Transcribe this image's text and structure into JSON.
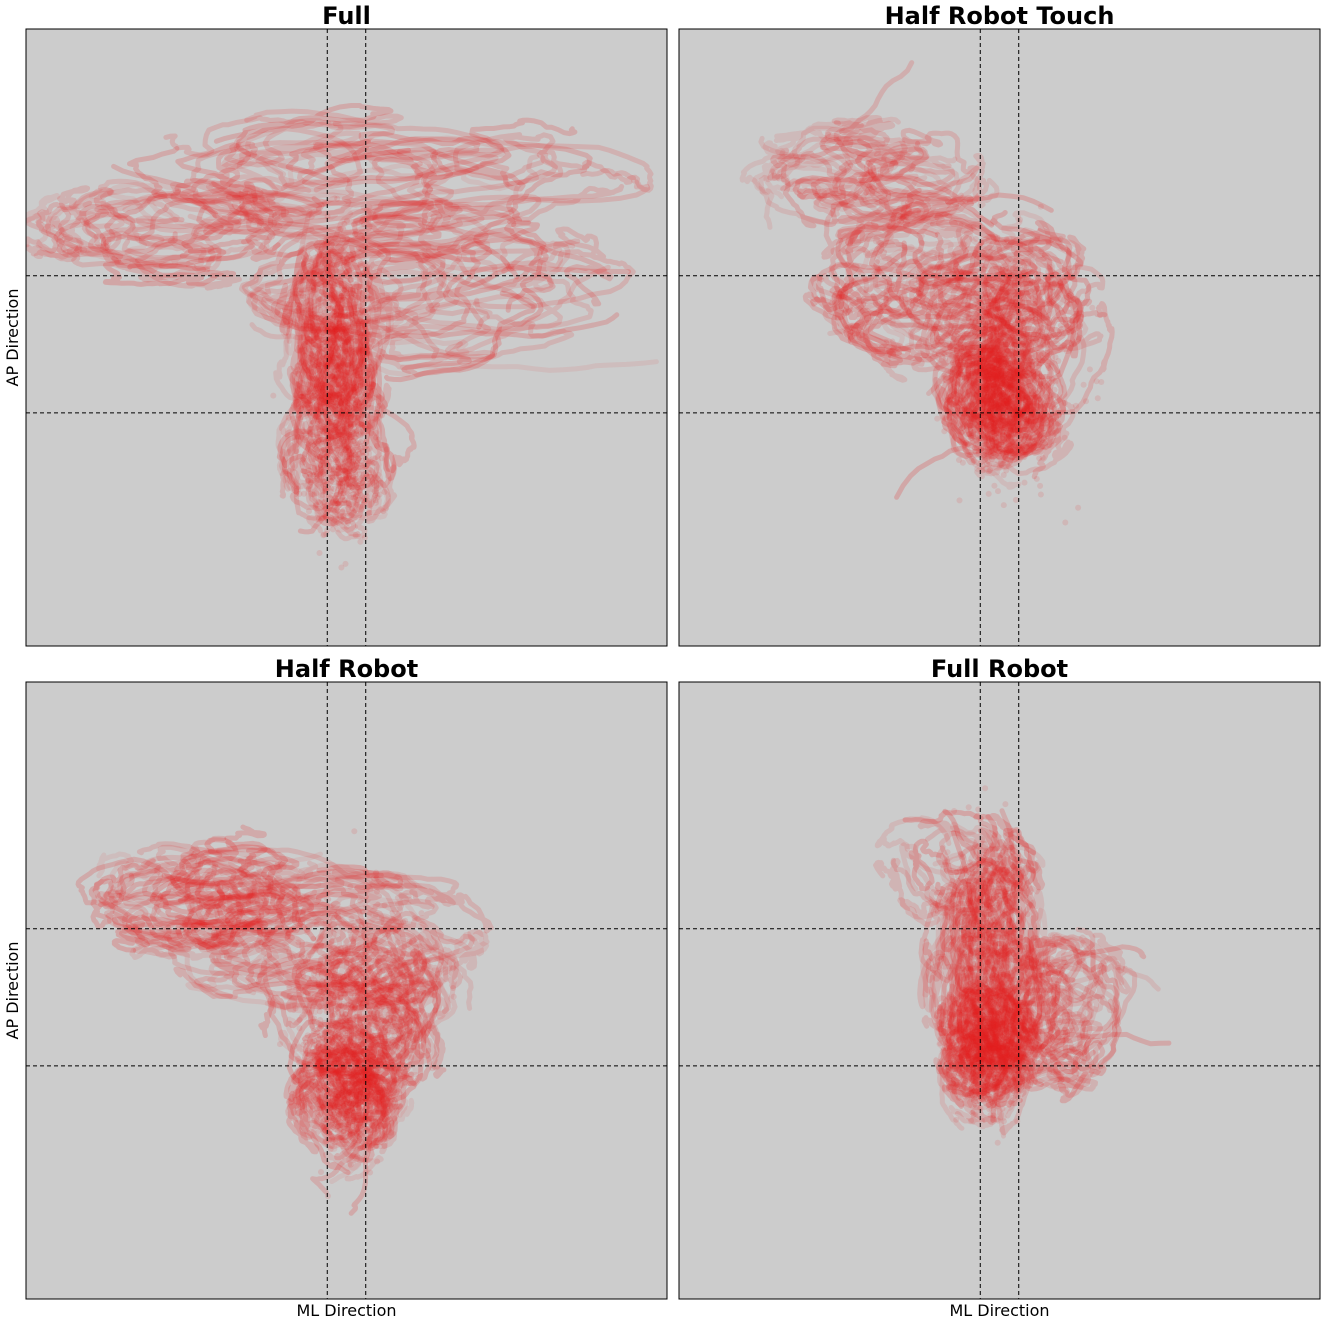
{
  "chart_data": [
    {
      "type": "scatter",
      "title": "Full",
      "xlabel": "",
      "ylabel": "AP Direction",
      "grid": false,
      "axis_ticks": false,
      "background": "#cccccc",
      "point_color": "#e61e1e",
      "reference_lines": {
        "vertical": [
          -0.03,
          0.03
        ],
        "horizontal": [
          -0.25,
          0.25
        ]
      },
      "xlim": [
        -0.5,
        0.5
      ],
      "ylim": [
        -1.1,
        1.15
      ],
      "regions": [
        {
          "cx": -0.02,
          "cy": 0.0,
          "sx": 0.025,
          "sy": 0.22,
          "weight": 0.32
        },
        {
          "cx": -0.01,
          "cy": -0.4,
          "sx": 0.035,
          "sy": 0.17,
          "weight": 0.2
        },
        {
          "cx": -0.3,
          "cy": 0.42,
          "sx": 0.1,
          "sy": 0.1,
          "weight": 0.16
        },
        {
          "cx": 0.1,
          "cy": 0.2,
          "sx": 0.18,
          "sy": 0.18,
          "weight": 0.16
        },
        {
          "cx": 0.05,
          "cy": 0.6,
          "sx": 0.22,
          "sy": 0.15,
          "weight": 0.16
        }
      ]
    },
    {
      "type": "scatter",
      "title": "Half Robot Touch",
      "xlabel": "",
      "ylabel": "",
      "grid": false,
      "axis_ticks": false,
      "background": "#cccccc",
      "point_color": "#e61e1e",
      "reference_lines": {
        "vertical": [
          -0.03,
          0.03
        ],
        "horizontal": [
          -0.25,
          0.25
        ]
      },
      "xlim": [
        -0.5,
        0.5
      ],
      "ylim": [
        -1.1,
        1.15
      ],
      "regions": [
        {
          "cx": 0.0,
          "cy": -0.2,
          "sx": 0.03,
          "sy": 0.13,
          "weight": 0.34
        },
        {
          "cx": 0.01,
          "cy": -0.05,
          "sx": 0.06,
          "sy": 0.25,
          "weight": 0.22
        },
        {
          "cx": -0.2,
          "cy": 0.6,
          "sx": 0.09,
          "sy": 0.12,
          "weight": 0.22
        },
        {
          "cx": -0.05,
          "cy": 0.2,
          "sx": 0.12,
          "sy": 0.18,
          "weight": 0.22
        }
      ]
    },
    {
      "type": "scatter",
      "title": "Half Robot",
      "xlabel": "ML Direction",
      "ylabel": "AP Direction",
      "grid": false,
      "axis_ticks": false,
      "background": "#cccccc",
      "point_color": "#e61e1e",
      "reference_lines": {
        "vertical": [
          -0.03,
          0.03
        ],
        "horizontal": [
          -0.25,
          0.25
        ]
      },
      "xlim": [
        -0.5,
        0.5
      ],
      "ylim": [
        -1.1,
        1.15
      ],
      "regions": [
        {
          "cx": 0.0,
          "cy": -0.35,
          "sx": 0.03,
          "sy": 0.13,
          "weight": 0.32
        },
        {
          "cx": 0.03,
          "cy": -0.05,
          "sx": 0.06,
          "sy": 0.2,
          "weight": 0.24
        },
        {
          "cx": -0.22,
          "cy": 0.38,
          "sx": 0.1,
          "sy": 0.12,
          "weight": 0.22
        },
        {
          "cx": -0.05,
          "cy": 0.2,
          "sx": 0.14,
          "sy": 0.16,
          "weight": 0.22
        }
      ]
    },
    {
      "type": "scatter",
      "title": "Full Robot",
      "xlabel": "ML Direction",
      "ylabel": "",
      "grid": false,
      "axis_ticks": false,
      "background": "#cccccc",
      "point_color": "#e61e1e",
      "reference_lines": {
        "vertical": [
          -0.03,
          0.03
        ],
        "horizontal": [
          -0.25,
          0.25
        ]
      },
      "xlim": [
        -0.5,
        0.5
      ],
      "ylim": [
        -1.1,
        1.15
      ],
      "regions": [
        {
          "cx": -0.02,
          "cy": -0.2,
          "sx": 0.025,
          "sy": 0.12,
          "weight": 0.34
        },
        {
          "cx": -0.02,
          "cy": 0.1,
          "sx": 0.035,
          "sy": 0.28,
          "weight": 0.3
        },
        {
          "cx": 0.08,
          "cy": -0.05,
          "sx": 0.06,
          "sy": 0.18,
          "weight": 0.18
        },
        {
          "cx": -0.06,
          "cy": 0.45,
          "sx": 0.05,
          "sy": 0.12,
          "weight": 0.18
        }
      ]
    }
  ]
}
